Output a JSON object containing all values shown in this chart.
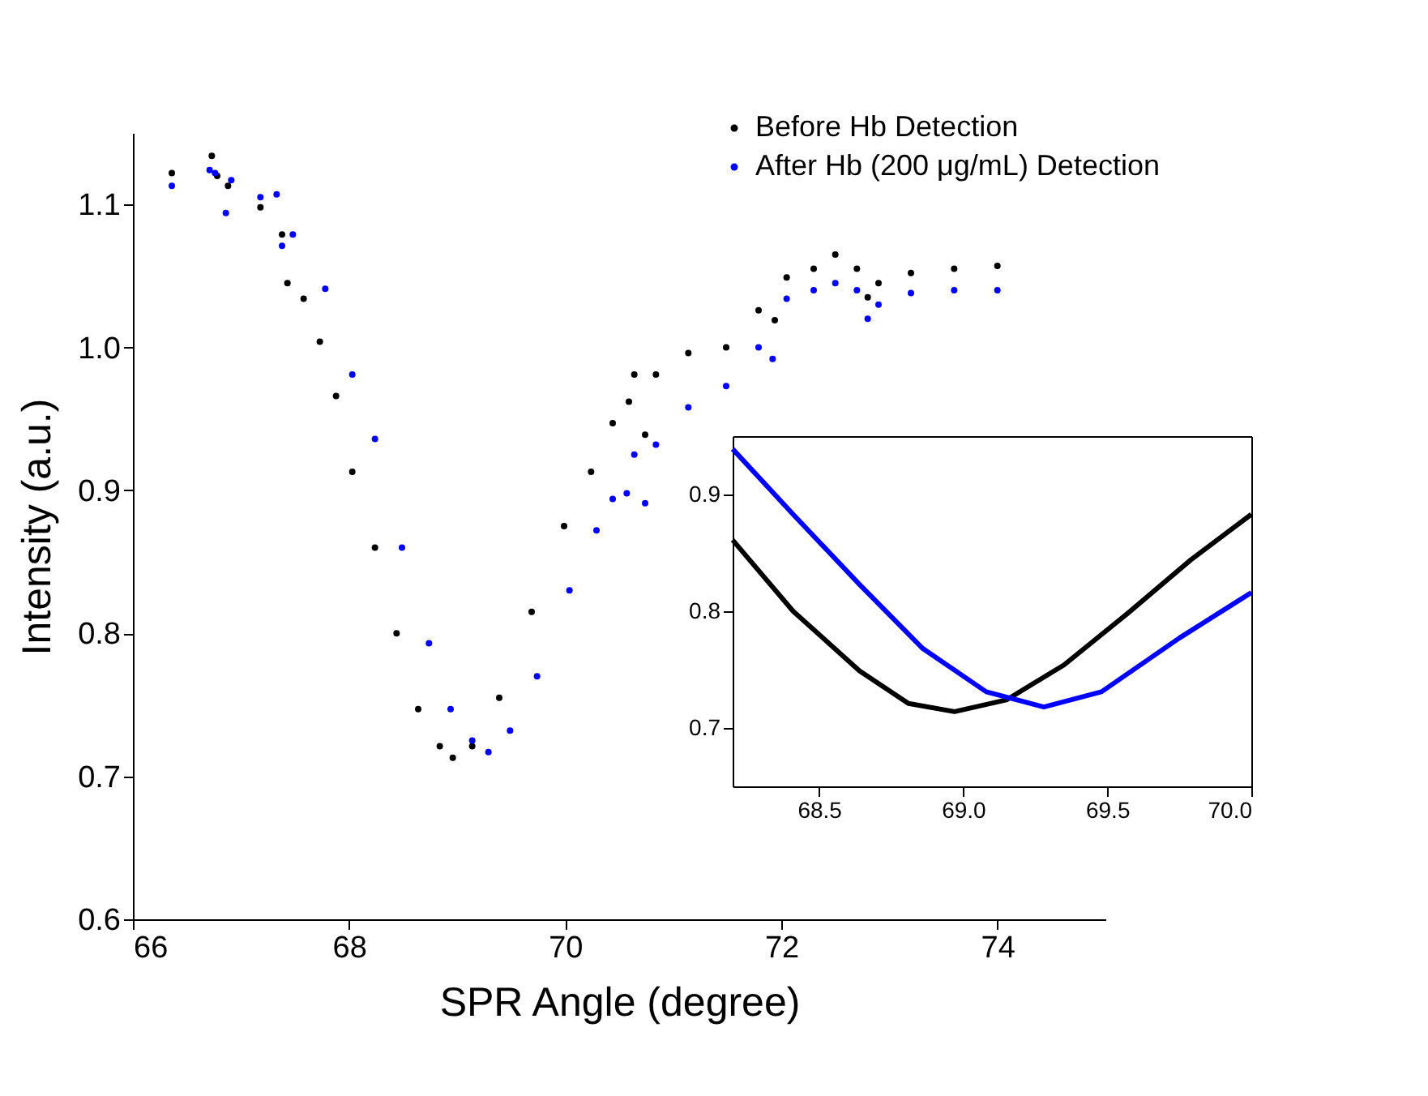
{
  "chart_data": [
    {
      "type": "scatter",
      "xlabel": "SPR Angle (degree)",
      "ylabel": "Intensity (a.u.)",
      "xlim": [
        66,
        75
      ],
      "ylim": [
        0.6,
        1.15
      ],
      "xticks": [
        66,
        68,
        70,
        72,
        74
      ],
      "yticks": [
        0.6,
        0.7,
        0.8,
        0.9,
        {
          "value": 1,
          "label": "1.0"
        },
        1.1
      ],
      "legend": "top right",
      "marker": "circle",
      "grid": false,
      "series": [
        {
          "name": "Before Hb Detection",
          "color": "#000000",
          "x": [
            66.36,
            66.73,
            66.78,
            66.88,
            67.18,
            67.38,
            67.43,
            67.58,
            67.73,
            67.88,
            68.03,
            68.24,
            68.44,
            68.64,
            68.84,
            68.96,
            69.14,
            69.39,
            69.69,
            69.99,
            70.24,
            70.44,
            70.59,
            70.64,
            70.74,
            70.84,
            71.14,
            71.49,
            71.79,
            71.94,
            72.05,
            72.3,
            72.5,
            72.7,
            72.8,
            72.9,
            73.2,
            73.6,
            74.0
          ],
          "values": [
            1.122,
            1.134,
            1.12,
            1.113,
            1.098,
            1.079,
            1.045,
            1.034,
            1.004,
            0.966,
            0.913,
            0.86,
            0.8,
            0.747,
            0.721,
            0.713,
            0.721,
            0.755,
            0.815,
            0.875,
            0.913,
            0.947,
            0.962,
            0.981,
            0.939,
            0.981,
            0.996,
            1.0,
            1.026,
            1.019,
            1.049,
            1.055,
            1.065,
            1.055,
            1.035,
            1.045,
            1.052,
            1.055,
            1.057
          ]
        },
        {
          "name": "After Hb (200 μg/mL) Detection",
          "color": "#0000ff",
          "x": [
            66.36,
            66.71,
            66.76,
            66.86,
            66.91,
            67.18,
            67.33,
            67.38,
            67.48,
            67.78,
            68.03,
            68.24,
            68.49,
            68.74,
            68.94,
            69.14,
            69.29,
            69.49,
            69.74,
            70.04,
            70.29,
            70.44,
            70.57,
            70.64,
            70.74,
            70.84,
            71.14,
            71.49,
            71.79,
            71.92,
            72.05,
            72.3,
            72.5,
            72.7,
            72.8,
            72.9,
            73.2,
            73.6,
            74.0
          ],
          "values": [
            1.113,
            1.124,
            1.122,
            1.094,
            1.117,
            1.105,
            1.107,
            1.071,
            1.079,
            1.041,
            0.981,
            0.936,
            0.86,
            0.793,
            0.747,
            0.725,
            0.717,
            0.732,
            0.77,
            0.83,
            0.872,
            0.894,
            0.898,
            0.925,
            0.891,
            0.932,
            0.958,
            0.973,
            1.0,
            0.992,
            1.034,
            1.04,
            1.045,
            1.04,
            1.02,
            1.03,
            1.038,
            1.04,
            1.04
          ]
        }
      ]
    },
    {
      "type": "line",
      "xlim": [
        68.2,
        70.0
      ],
      "ylim": [
        0.65,
        0.95
      ],
      "xticks": [
        68.5,
        {
          "value": 69,
          "label": "69.0"
        },
        69.5,
        {
          "value": 70,
          "label": "70.0"
        }
      ],
      "yticks": [
        0.7,
        0.8,
        0.9
      ],
      "legend": false,
      "grid": false,
      "series": [
        {
          "color": "#000000",
          "x": [
            68.2,
            68.41,
            68.64,
            68.81,
            68.97,
            69.15,
            69.35,
            69.57,
            69.79,
            70.0
          ],
          "values": [
            0.861,
            0.8,
            0.749,
            0.721,
            0.714,
            0.724,
            0.754,
            0.798,
            0.844,
            0.883
          ]
        },
        {
          "color": "#0000ff",
          "x": [
            68.2,
            68.41,
            68.64,
            68.86,
            69.08,
            69.28,
            69.48,
            69.75,
            70.0
          ],
          "values": [
            0.939,
            0.883,
            0.823,
            0.768,
            0.731,
            0.718,
            0.731,
            0.777,
            0.816
          ]
        }
      ]
    }
  ]
}
